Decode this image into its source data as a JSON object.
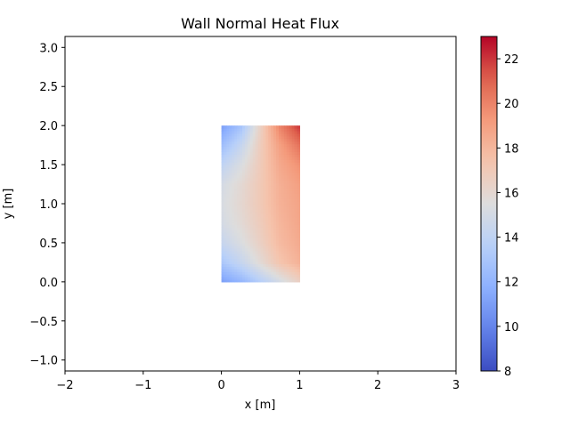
{
  "chart_data": {
    "type": "heatmap",
    "title": "Wall Normal Heat Flux",
    "xlabel": "x [m]",
    "ylabel": "y [m]",
    "xlim": [
      -2,
      3
    ],
    "ylim": [
      -1.14,
      3.14
    ],
    "x_ticks": [
      -2,
      -1,
      0,
      1,
      2,
      3
    ],
    "x_tick_labels": [
      "−2",
      "−1",
      "0",
      "1",
      "2",
      "3"
    ],
    "y_ticks": [
      -1.0,
      -0.5,
      0.0,
      0.5,
      1.0,
      1.5,
      2.0,
      2.5,
      3.0
    ],
    "y_tick_labels": [
      "−1.0",
      "−0.5",
      "0.0",
      "0.5",
      "1.0",
      "1.5",
      "2.0",
      "2.5",
      "3.0"
    ],
    "grid": false,
    "colormap": "coolwarm",
    "colorbar": {
      "min": 8,
      "max": 23,
      "ticks": [
        8,
        10,
        12,
        14,
        16,
        18,
        20,
        22
      ],
      "tick_labels": [
        "8",
        "10",
        "12",
        "14",
        "16",
        "18",
        "20",
        "22"
      ]
    },
    "field_domain": {
      "x": [
        0,
        1
      ],
      "y": [
        0,
        2
      ]
    },
    "field_x": [
      0.0,
      0.25,
      0.5,
      0.75,
      1.0
    ],
    "field_y": [
      0.0,
      0.25,
      0.5,
      0.75,
      1.0,
      1.25,
      1.5,
      1.75,
      2.0
    ],
    "field_values": [
      [
        11.0,
        12.0,
        13.5,
        15.0,
        16.5
      ],
      [
        13.0,
        14.3,
        15.8,
        17.3,
        18.2
      ],
      [
        14.3,
        15.3,
        16.5,
        17.8,
        18.5
      ],
      [
        15.0,
        15.8,
        16.8,
        18.0,
        18.7
      ],
      [
        15.2,
        16.0,
        17.0,
        18.2,
        18.8
      ],
      [
        15.0,
        15.9,
        17.0,
        18.3,
        19.0
      ],
      [
        14.0,
        15.3,
        16.9,
        18.6,
        19.5
      ],
      [
        12.5,
        14.3,
        16.8,
        19.0,
        20.5
      ],
      [
        11.0,
        12.8,
        16.5,
        20.0,
        22.0
      ]
    ]
  }
}
